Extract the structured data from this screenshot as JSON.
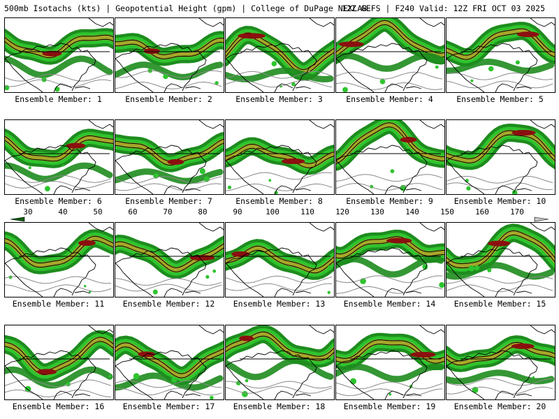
{
  "header": {
    "left_title": "500mb Isotachs (kts) | Geopotential Height (gpm) | College of DuPage NEXLAB",
    "right_title": "12Z GEFS | F240 Valid: 12Z FRI OCT 03 2025"
  },
  "colorbar": {
    "tick_labels": [
      "30",
      "40",
      "50",
      "60",
      "70",
      "80",
      "90",
      "100",
      "110",
      "120",
      "130",
      "140",
      "150",
      "160",
      "170"
    ],
    "colors": [
      "#0b5d0b",
      "#1f8e1f",
      "#2ec42e",
      "#39ff39",
      "#a6a62a",
      "#d9d915",
      "#ffff00",
      "#8b0f0f",
      "#b01212",
      "#d21515",
      "#ff0000",
      "#9b149b",
      "#b317b3",
      "#d61ad6",
      "#ff33ff",
      "#0b0bb5",
      "#1443e6",
      "#1f80ff",
      "#16a8ff",
      "#22d0ff",
      "#22ffff",
      "#6b6b6b",
      "#9a9a9a",
      "#c6c6c6"
    ]
  },
  "members": [
    {
      "label": "Ensemble Member: 1"
    },
    {
      "label": "Ensemble Member: 2"
    },
    {
      "label": "Ensemble Member: 3"
    },
    {
      "label": "Ensemble Member: 4"
    },
    {
      "label": "Ensemble Member: 5"
    },
    {
      "label": "Ensemble Member: 6"
    },
    {
      "label": "Ensemble Member: 7"
    },
    {
      "label": "Ensemble Member: 8"
    },
    {
      "label": "Ensemble Member: 9"
    },
    {
      "label": "Ensemble Member: 10"
    },
    {
      "label": "Ensemble Member: 11"
    },
    {
      "label": "Ensemble Member: 12"
    },
    {
      "label": "Ensemble Member: 13"
    },
    {
      "label": "Ensemble Member: 14"
    },
    {
      "label": "Ensemble Member: 15"
    },
    {
      "label": "Ensemble Member: 16"
    },
    {
      "label": "Ensemble Member: 17"
    },
    {
      "label": "Ensemble Member: 18"
    },
    {
      "label": "Ensemble Member: 19"
    },
    {
      "label": "Ensemble Member: 20"
    }
  ],
  "map_colors": {
    "jet_weak": "#1e8c1e",
    "jet_mid": "#2ec42e",
    "jet_edge": "#3fe83f",
    "jet_core": "#a6a62a",
    "jet_max": "#8b0f0f",
    "contour": "#8a8a8a",
    "coast": "#000000"
  }
}
